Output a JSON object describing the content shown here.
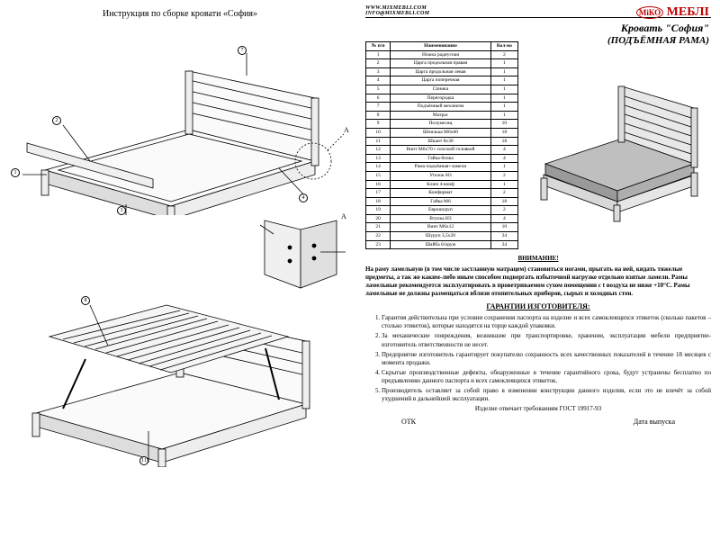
{
  "left": {
    "title": "Инструкция по сборке кровати «София»",
    "callouts_top": [
      "7",
      "2",
      "1",
      "3",
      "4"
    ],
    "detail_label": "A",
    "callouts_bottom": [
      "8",
      "11"
    ]
  },
  "header": {
    "url1": "WWW.MIXMEBLI.COM",
    "url2": "INFO@MIXMEBLI.COM",
    "logo_brand": "МЕБЛІ",
    "logo_prefix": "МіКО",
    "product_title": "Кровать \"София\"",
    "product_sub": "(ПОДЪЁМНАЯ РАМА)"
  },
  "table": {
    "headers": [
      "№ п/п",
      "Наименование",
      "Кол-во"
    ],
    "rows": [
      [
        "1",
        "Ножка радиусная",
        "2"
      ],
      [
        "2",
        "Царга продольная правая",
        "1"
      ],
      [
        "3",
        "Царга продольная левая",
        "1"
      ],
      [
        "4",
        "Царга поперечная",
        "1"
      ],
      [
        "5",
        "Спинка",
        "1"
      ],
      [
        "6",
        "Перегородка",
        "1"
      ],
      [
        "7",
        "Подъёмный механизм",
        "1"
      ],
      [
        "8",
        "Матрас",
        "1"
      ],
      [
        "9",
        "Полумесяц",
        "10"
      ],
      [
        "10",
        "Шпилька М6х60",
        "18"
      ],
      [
        "11",
        "Шкант 8х30",
        "18"
      ],
      [
        "12",
        "Винт М6х70 с плоской головкой",
        "4"
      ],
      [
        "13",
        "Гайка-бочка",
        "4"
      ],
      [
        "14",
        "Рама подъёмная+ламели",
        "1"
      ],
      [
        "15",
        "Уголок Н3",
        "2"
      ],
      [
        "16",
        "Ключ 4-конф",
        "1"
      ],
      [
        "17",
        "Конфирмат",
        "2"
      ],
      [
        "18",
        "Гайка М6",
        "18"
      ],
      [
        "19",
        "Еврошуруп",
        "2"
      ],
      [
        "20",
        "Втулка Н3",
        "4"
      ],
      [
        "21",
        "Винт М6х12",
        "10"
      ],
      [
        "22",
        "Шуруп 3,5х20",
        "34"
      ],
      [
        "23",
        "Шайба 6/пруж",
        "34"
      ]
    ]
  },
  "warning": {
    "title": "ВНИМАНИЕ!",
    "text": "На раму ламельную (в том числе застланную матрацем) становиться ногами, прыгать на ней, кидать тяжелые предметы, а так же каким-либо иным способом подвергать избыточной нагрузке отдельно взятые ламели. Рамы ламельные рекомендуется эксплуатировать в проветриваемом сухом помещении с t воздуха не ниже +10°С. Рамы ламельные не должны размещаться вблизи отопительных приборов, сырых и холодных стен."
  },
  "warranty": {
    "title": "ГАРАНТИИ ИЗГОТОВИТЕЛЯ:",
    "items": [
      "Гарантия действительна при условии сохранения паспорта на изделие и всех самоклеящихся этикеток (сколько пакетов – столько этикеток), которые находятся на торце каждой упаковки.",
      "За механические повреждения, возникшие при транспортировке, хранении, эксплуатации мебели предприятие-изготовитель ответственности не несет.",
      "Предприятие изготовитель гарантирует покупателю сохранность всех качественных показателей в течение 18 месяцев с момента продажи.",
      "Скрытые производственные дефекты, обнаруженные в течение гарантийного срока, будут устранены бесплатно по предъявлению данного паспорта и всех самоклеящихся этикеток.",
      "Производитель оставляет за собой право в изменении конструкции данного изделия, если это не влечёт за собой ухудшений в дальнейшей эксплуатации."
    ],
    "gost": "Изделие отвечает требованиям ГОСТ 19917-93"
  },
  "footer": {
    "otk": "ОТК",
    "date": "Дата выпуска"
  },
  "colors": {
    "line": "#000000",
    "fill_light": "#f5f5f5",
    "fill_mid": "#cccccc",
    "fill_dark": "#888888",
    "red": "#c00000"
  }
}
